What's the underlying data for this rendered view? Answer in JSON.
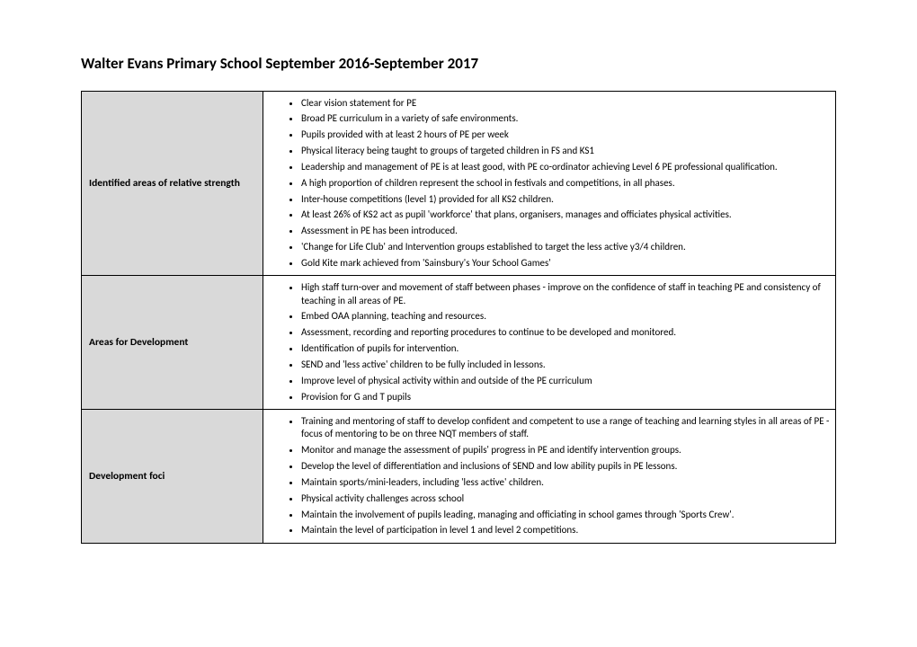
{
  "title": "Walter Evans Primary School September 2016-September 2017",
  "rows": [
    {
      "label": "Identified areas of relative strength",
      "items": [
        "Clear vision statement for PE",
        "Broad PE curriculum in a variety of safe environments.",
        "Pupils provided with at least 2 hours of PE per week",
        "Physical literacy being taught to groups of targeted children in FS and  KS1",
        "Leadership and management of PE is at least good, with PE co-ordinator achieving Level 6 PE professional qualification.",
        "A high proportion of children represent the school in festivals and competitions, in all phases.",
        "Inter-house competitions (level 1) provided for all KS2 children.",
        "At least 26% of KS2 act as pupil 'workforce' that plans, organisers, manages and officiates physical activities.",
        "Assessment in PE has been introduced.",
        "'Change for Life Club' and Intervention groups established to target the less active y3/4 children.",
        "Gold Kite mark achieved from 'Sainsbury's Your School Games'"
      ]
    },
    {
      "label": "Areas for Development",
      "items": [
        "High staff turn-over and movement of staff between phases  - improve on the confidence of staff in teaching PE and consistency of teaching in all areas of PE.",
        "Embed OAA planning, teaching and resources.",
        "Assessment, recording and reporting procedures to continue to be developed and monitored.",
        "Identification of pupils for intervention.",
        "SEND and 'less active' children to be fully included in lessons.",
        "Improve level of physical activity within and outside of the PE curriculum",
        "Provision for G and T pupils"
      ]
    },
    {
      "label": "Development foci",
      "items": [
        "Training and mentoring of staff to develop confident and competent to use a range of teaching and learning styles in all areas of PE - focus of mentoring to be on three NQT members of staff.",
        "Monitor and manage the assessment of pupils' progress in PE and identify intervention groups.",
        "Develop the level of differentiation and inclusions of SEND and low ability pupils in PE lessons.",
        "Maintain sports/mini-leaders, including 'less active' children.",
        "Physical activity challenges across school",
        "Maintain the involvement of pupils leading, managing and officiating in school games through 'Sports Crew'.",
        "Maintain the level of participation in level 1 and level 2 competitions."
      ]
    }
  ]
}
